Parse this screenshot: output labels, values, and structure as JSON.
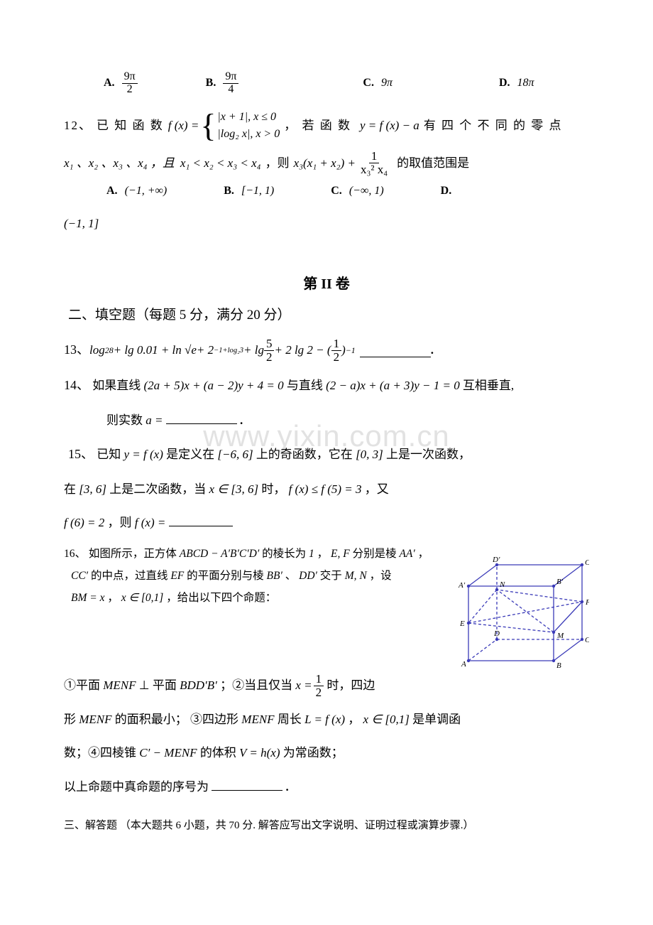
{
  "watermark": "www.yixin.com.cn",
  "q11": {
    "A_label": "A.",
    "A_num": "9π",
    "A_den": "2",
    "B_label": "B.",
    "B_num": "9π",
    "B_den": "4",
    "C_label": "C.",
    "C_val": "9π",
    "D_label": "D.",
    "D_val": "18π"
  },
  "q12": {
    "num": "12、",
    "lead": "已 知 函 数",
    "fx": "f (x) =",
    "piece1": "|x + 1|, x ≤ 0",
    "piece2": "|log₂ x|, x > 0",
    "mid": "， 若 函 数",
    "yfx": "y = f (x) − a",
    "tail": "有 四 个 不 同 的 零 点",
    "line2a": "x₁ 、x₂ 、x₃ 、x₄ ，且",
    "ineq": "x₁ < x₂ < x₃ < x₄",
    "then": "，则",
    "expr_left": "x₃(x₁ + x₂) +",
    "expr_num": "1",
    "expr_den": "x₃² x₄",
    "line2b": "的取值范围是",
    "A_label": "A.",
    "A_val": "(−1, +∞)",
    "B_label": "B.",
    "B_val": "[−1, 1)",
    "C_label": "C.",
    "C_val": "(−∞, 1)",
    "D_label": "D.",
    "D_val": "(−1, 1]"
  },
  "part2_title": "第 II 卷",
  "sec2_heading": "二、填空题（每题 5 分，满分 20 分）",
  "q13": {
    "num": "13、",
    "expr": "log₂⁸ + lg 0.01 + ln √e + 2⁻¹⁺ˡᵒᵍ²³ + lg (5/2) + 2 lg 2 − (1/2)⁻¹",
    "render": {
      "a": "log",
      "b": "2",
      "c": "8",
      "d": " + lg 0.01 + ln √",
      "e": "e",
      "f": " + 2",
      "g": "−1+log₂3",
      "h": " + lg ",
      "i_num": "5",
      "i_den": "2",
      "j": " + 2 lg 2 − (",
      "k_num": "1",
      "k_den": "2",
      "l": ")",
      "m": "−1"
    },
    "period": "."
  },
  "q14": {
    "num": "14、",
    "text1": "如果直线",
    "line1": "(2a + 5)x + (a − 2)y + 4 = 0",
    "text2": "与直线",
    "line2": "(2 − a)x + (a + 3)y − 1 = 0",
    "text3": "互相垂直,",
    "text4": "则实数",
    "avar": "a =",
    "period": "."
  },
  "q15": {
    "num": "15、",
    "t1": "已知",
    "yfx": "y = f (x)",
    "t2": "是定义在",
    "dom": "[−6, 6]",
    "t3": "上的奇函数，它在",
    "dom2": "[0, 3]",
    "t4": "上是一次函数，",
    "t5": "在",
    "dom3": "[3, 6]",
    "t6": "上是二次函数，当",
    "xr": "x ∈ [3, 6]",
    "t7": "时，",
    "fineq": "f (x) ≤ f (5) = 3",
    "t8": "，又",
    "f6": "f (6) = 2",
    "t9": "，则",
    "fx": "f (x) ="
  },
  "q16": {
    "num": "16、",
    "l1a": "如图所示，正方体",
    "cube": "ABCD − A′B′C′D′",
    "l1b": "的棱长为",
    "one": "1",
    "l1c": "，",
    "ef": "E, F",
    "l1d": "分别是棱",
    "aa": "AA′",
    "l1e": "，",
    "cc": "CC′",
    "l2a": "的中点，过直线",
    "efl": "EF",
    "l2b": "的平面分别与棱",
    "bb": "BB′",
    "l2c": "、",
    "dd": "DD′",
    "l2d": "交于",
    "mn": "M, N",
    "l2e": "，设",
    "bmx": "BM = x",
    "l3a": "，",
    "xr": "x ∈ [0,1]",
    "l3b": "，给出以下四个命题：",
    "p1a": "①平面",
    "menf": "MENF",
    "p1b": "⊥ 平面",
    "bddb": "BDD′B′",
    "p1c": "；②当且仅当",
    "xhalf_lead": "x =",
    "xhalf_num": "1",
    "xhalf_den": "2",
    "p1d": "时，四边",
    "p2a": "形",
    "p2b": "的面积最小；  ③四边形",
    "p2c": "周长",
    "lfx": "L = f (x)",
    "p2d": "，",
    "p2e": "是单调函",
    "p3a": "数；④四棱锥",
    "cone": "C′ − MENF",
    "p3b": "的体积",
    "vhx": "V = h(x)",
    "p3c": "为常函数；",
    "p4": "以上命题中真命题的序号为",
    "period": ".",
    "figure": {
      "stroke": "#3a3ab8",
      "dash": "4,3",
      "labels": {
        "D2": "D′",
        "C2": "C′",
        "A2": "A′",
        "B2": "B′",
        "D": "D",
        "C": "C",
        "A": "A",
        "B": "B",
        "E": "E",
        "F": "F",
        "M": "M",
        "N": "N"
      }
    }
  },
  "sec3_heading": "三、解答题 （本大题共 6 小题，共 70 分. 解答应写出文字说明、证明过程或演算步骤.）"
}
